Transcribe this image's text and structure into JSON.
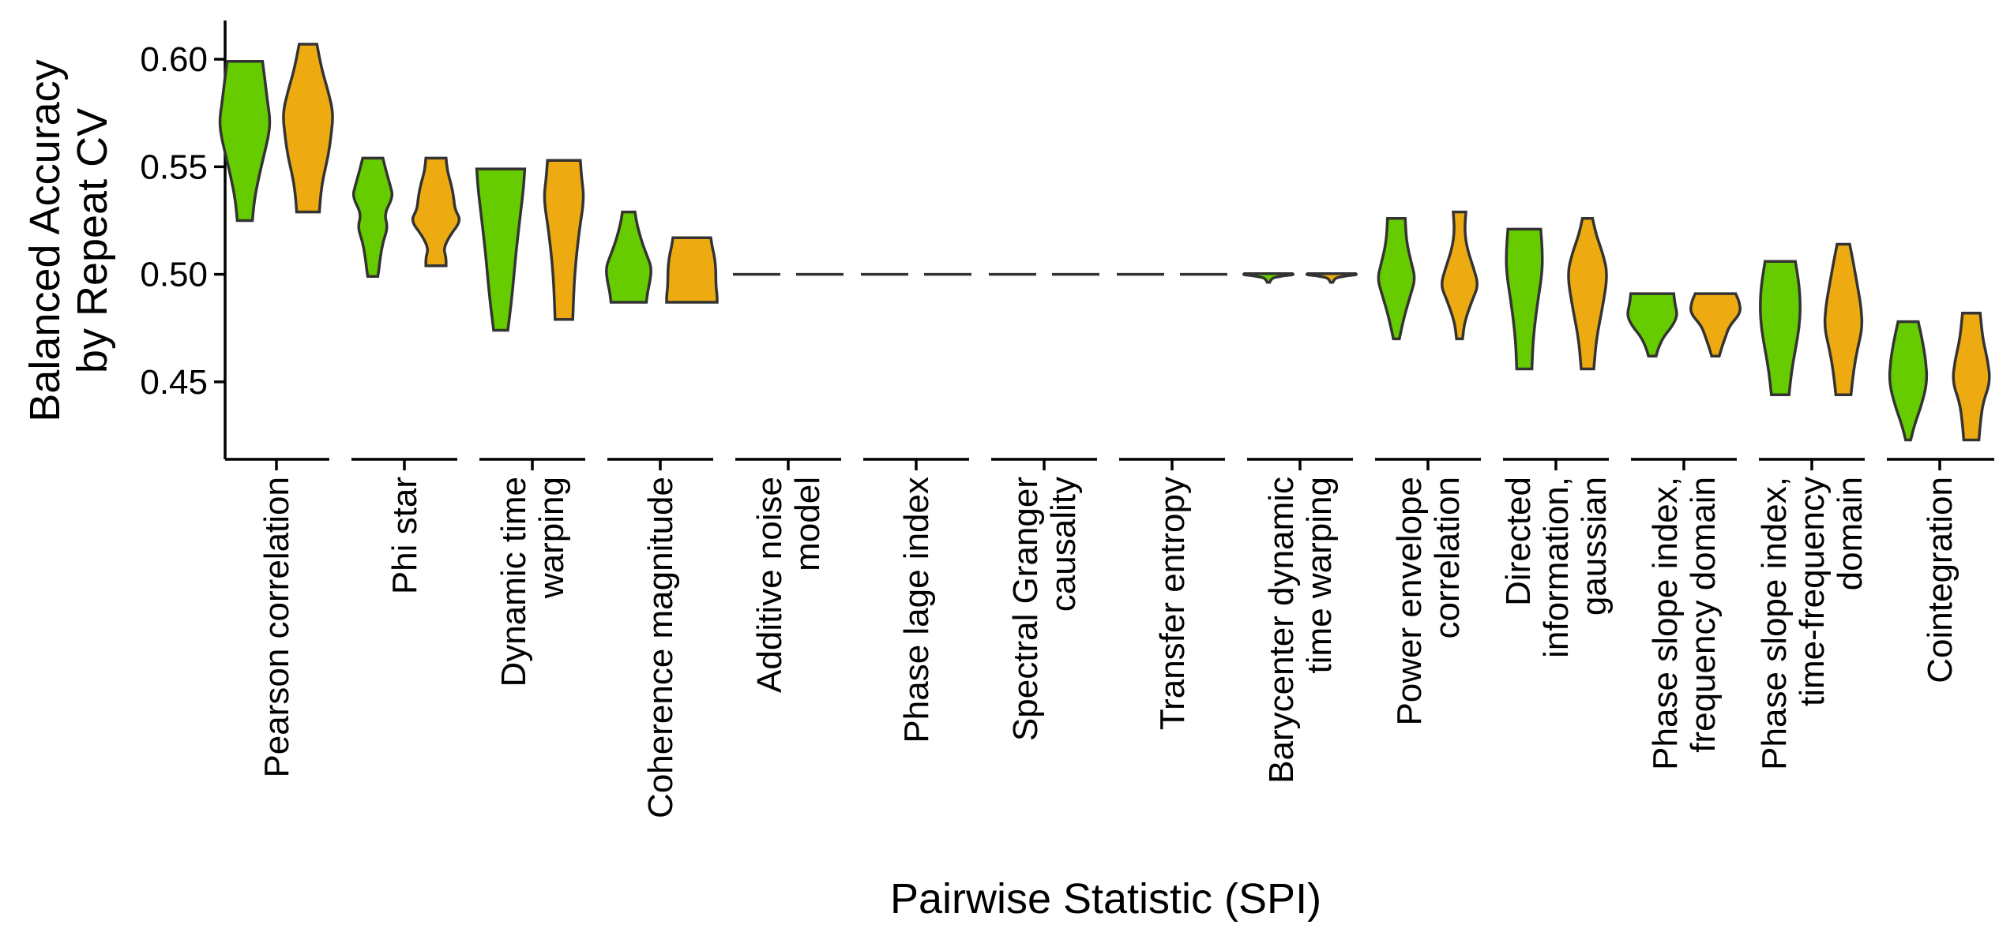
{
  "chart_data": {
    "type": "violin",
    "xlabel": "Pairwise Statistic (SPI)",
    "ylabel": [
      "Balanced Accuracy",
      "by Repeat CV"
    ],
    "ylim": [
      0.414,
      0.618
    ],
    "yticks": [
      0.45,
      0.5,
      0.55,
      0.6
    ],
    "ytick_labels": [
      "0.45",
      "0.50",
      "0.55",
      "0.60"
    ],
    "grid": false,
    "legend": "none",
    "series_colors": [
      "#66cc00",
      "#eeaa11"
    ],
    "categories": [
      {
        "label": [
          "Pearson correlation"
        ],
        "violins": [
          {
            "min": 0.525,
            "max": 0.599,
            "profile": [
              [
                0.525,
                0.3
              ],
              [
                0.535,
                0.38
              ],
              [
                0.545,
                0.55
              ],
              [
                0.555,
                0.75
              ],
              [
                0.565,
                0.95
              ],
              [
                0.572,
                1.0
              ],
              [
                0.58,
                0.9
              ],
              [
                0.59,
                0.8
              ],
              [
                0.599,
                0.7
              ]
            ]
          },
          {
            "min": 0.529,
            "max": 0.607,
            "profile": [
              [
                0.529,
                0.45
              ],
              [
                0.537,
                0.5
              ],
              [
                0.545,
                0.6
              ],
              [
                0.555,
                0.8
              ],
              [
                0.565,
                0.92
              ],
              [
                0.575,
                1.0
              ],
              [
                0.585,
                0.8
              ],
              [
                0.595,
                0.55
              ],
              [
                0.607,
                0.35
              ]
            ]
          }
        ]
      },
      {
        "label": [
          "Phi star"
        ],
        "violins": [
          {
            "min": 0.499,
            "max": 0.554,
            "profile": [
              [
                0.499,
                0.2
              ],
              [
                0.503,
                0.25
              ],
              [
                0.508,
                0.3
              ],
              [
                0.515,
                0.4
              ],
              [
                0.522,
                0.6
              ],
              [
                0.528,
                0.45
              ],
              [
                0.536,
                0.8
              ],
              [
                0.541,
                0.7
              ],
              [
                0.547,
                0.55
              ],
              [
                0.554,
                0.4
              ]
            ]
          },
          {
            "min": 0.504,
            "max": 0.554,
            "profile": [
              [
                0.504,
                0.4
              ],
              [
                0.508,
                0.4
              ],
              [
                0.512,
                0.3
              ],
              [
                0.518,
                0.55
              ],
              [
                0.525,
                1.0
              ],
              [
                0.53,
                0.75
              ],
              [
                0.536,
                0.7
              ],
              [
                0.542,
                0.6
              ],
              [
                0.548,
                0.45
              ],
              [
                0.554,
                0.4
              ]
            ]
          }
        ]
      },
      {
        "label": [
          "Dynamic time",
          "warping"
        ],
        "violins": [
          {
            "min": 0.474,
            "max": 0.549,
            "profile": [
              [
                0.474,
                0.28
              ],
              [
                0.49,
                0.45
              ],
              [
                0.51,
                0.6
              ],
              [
                0.53,
                0.8
              ],
              [
                0.54,
                0.9
              ],
              [
                0.549,
                0.95
              ]
            ]
          },
          {
            "min": 0.479,
            "max": 0.553,
            "profile": [
              [
                0.479,
                0.35
              ],
              [
                0.5,
                0.42
              ],
              [
                0.52,
                0.6
              ],
              [
                0.535,
                0.8
              ],
              [
                0.545,
                0.7
              ],
              [
                0.553,
                0.65
              ]
            ]
          }
        ]
      },
      {
        "label": [
          "Coherence magnitude"
        ],
        "violins": [
          {
            "min": 0.487,
            "max": 0.529,
            "profile": [
              [
                0.487,
                0.7
              ],
              [
                0.492,
                0.75
              ],
              [
                0.497,
                0.85
              ],
              [
                0.503,
                0.9
              ],
              [
                0.508,
                0.75
              ],
              [
                0.514,
                0.55
              ],
              [
                0.52,
                0.4
              ],
              [
                0.525,
                0.3
              ],
              [
                0.529,
                0.25
              ]
            ]
          },
          {
            "min": 0.487,
            "max": 0.517,
            "profile": [
              [
                0.487,
                1.0
              ],
              [
                0.49,
                1.0
              ],
              [
                0.495,
                0.95
              ],
              [
                0.502,
                0.95
              ],
              [
                0.508,
                0.9
              ],
              [
                0.513,
                0.8
              ],
              [
                0.517,
                0.75
              ]
            ]
          }
        ]
      },
      {
        "label": [
          "Additive noise",
          "model"
        ],
        "violins": [
          {
            "min": 0.4997,
            "max": 0.5003,
            "profile": [
              [
                0.4997,
                0.9
              ],
              [
                0.5003,
                0.9
              ]
            ]
          },
          {
            "min": 0.4997,
            "max": 0.5003,
            "profile": [
              [
                0.4997,
                0.9
              ],
              [
                0.5003,
                0.9
              ]
            ]
          }
        ]
      },
      {
        "label": [
          "Phase lage index"
        ],
        "violins": [
          {
            "min": 0.4997,
            "max": 0.5003,
            "profile": [
              [
                0.4997,
                0.9
              ],
              [
                0.5003,
                0.9
              ]
            ]
          },
          {
            "min": 0.4997,
            "max": 0.5003,
            "profile": [
              [
                0.4997,
                0.9
              ],
              [
                0.5003,
                0.9
              ]
            ]
          }
        ]
      },
      {
        "label": [
          "Spectral Granger",
          "causality"
        ],
        "violins": [
          {
            "min": 0.4997,
            "max": 0.5003,
            "profile": [
              [
                0.4997,
                0.9
              ],
              [
                0.5003,
                0.9
              ]
            ]
          },
          {
            "min": 0.4997,
            "max": 0.5003,
            "profile": [
              [
                0.4997,
                0.9
              ],
              [
                0.5003,
                0.9
              ]
            ]
          }
        ]
      },
      {
        "label": [
          "Transfer entropy"
        ],
        "violins": [
          {
            "min": 0.4997,
            "max": 0.5003,
            "profile": [
              [
                0.4997,
                0.9
              ],
              [
                0.5003,
                0.9
              ]
            ]
          },
          {
            "min": 0.4997,
            "max": 0.5003,
            "profile": [
              [
                0.4997,
                0.9
              ],
              [
                0.5003,
                0.9
              ]
            ]
          }
        ]
      },
      {
        "label": [
          "Barycenter dynamic",
          "time warping"
        ],
        "violins": [
          {
            "min": 0.4963,
            "max": 0.5003,
            "profile": [
              [
                0.4963,
                0.05
              ],
              [
                0.4975,
                0.1
              ],
              [
                0.4985,
                0.2
              ],
              [
                0.4993,
                0.6
              ],
              [
                0.4998,
                1.0
              ],
              [
                0.5003,
                0.95
              ]
            ]
          },
          {
            "min": 0.4963,
            "max": 0.5003,
            "profile": [
              [
                0.4963,
                0.05
              ],
              [
                0.4975,
                0.1
              ],
              [
                0.4985,
                0.2
              ],
              [
                0.4993,
                0.6
              ],
              [
                0.4998,
                1.0
              ],
              [
                0.5003,
                0.95
              ]
            ]
          }
        ]
      },
      {
        "label": [
          "Power envelope",
          "correlation"
        ],
        "violins": [
          {
            "min": 0.47,
            "max": 0.526,
            "profile": [
              [
                0.47,
                0.12
              ],
              [
                0.48,
                0.3
              ],
              [
                0.49,
                0.55
              ],
              [
                0.498,
                0.75
              ],
              [
                0.505,
                0.6
              ],
              [
                0.515,
                0.4
              ],
              [
                0.526,
                0.35
              ]
            ]
          },
          {
            "min": 0.47,
            "max": 0.529,
            "profile": [
              [
                0.47,
                0.12
              ],
              [
                0.478,
                0.2
              ],
              [
                0.488,
                0.5
              ],
              [
                0.495,
                0.75
              ],
              [
                0.503,
                0.55
              ],
              [
                0.512,
                0.3
              ],
              [
                0.52,
                0.2
              ],
              [
                0.529,
                0.25
              ]
            ]
          }
        ]
      },
      {
        "label": [
          "Directed",
          "information,",
          "gaussian"
        ],
        "violins": [
          {
            "min": 0.456,
            "max": 0.521,
            "profile": [
              [
                0.456,
                0.3
              ],
              [
                0.47,
                0.35
              ],
              [
                0.485,
                0.5
              ],
              [
                0.5,
                0.7
              ],
              [
                0.51,
                0.72
              ],
              [
                0.521,
                0.65
              ]
            ]
          },
          {
            "min": 0.456,
            "max": 0.526,
            "profile": [
              [
                0.456,
                0.25
              ],
              [
                0.47,
                0.35
              ],
              [
                0.485,
                0.6
              ],
              [
                0.5,
                0.8
              ],
              [
                0.51,
                0.6
              ],
              [
                0.518,
                0.35
              ],
              [
                0.526,
                0.2
              ]
            ]
          }
        ]
      },
      {
        "label": [
          "Phase slope index,",
          "frequency domain"
        ],
        "violins": [
          {
            "min": 0.462,
            "max": 0.491,
            "profile": [
              [
                0.462,
                0.15
              ],
              [
                0.466,
                0.25
              ],
              [
                0.471,
                0.45
              ],
              [
                0.476,
                0.8
              ],
              [
                0.481,
                1.0
              ],
              [
                0.486,
                0.9
              ],
              [
                0.491,
                0.85
              ]
            ]
          },
          {
            "min": 0.462,
            "max": 0.491,
            "profile": [
              [
                0.462,
                0.15
              ],
              [
                0.466,
                0.25
              ],
              [
                0.471,
                0.4
              ],
              [
                0.476,
                0.55
              ],
              [
                0.482,
                1.0
              ],
              [
                0.487,
                0.95
              ],
              [
                0.491,
                0.8
              ]
            ]
          }
        ]
      },
      {
        "label": [
          "Phase slope index,",
          "time-frequency",
          "domain"
        ],
        "violins": [
          {
            "min": 0.444,
            "max": 0.506,
            "profile": [
              [
                0.444,
                0.35
              ],
              [
                0.455,
                0.45
              ],
              [
                0.465,
                0.6
              ],
              [
                0.475,
                0.75
              ],
              [
                0.485,
                0.8
              ],
              [
                0.495,
                0.75
              ],
              [
                0.506,
                0.6
              ]
            ]
          },
          {
            "min": 0.444,
            "max": 0.514,
            "profile": [
              [
                0.444,
                0.3
              ],
              [
                0.455,
                0.4
              ],
              [
                0.465,
                0.55
              ],
              [
                0.475,
                0.75
              ],
              [
                0.485,
                0.7
              ],
              [
                0.495,
                0.55
              ],
              [
                0.505,
                0.4
              ],
              [
                0.514,
                0.25
              ]
            ]
          }
        ]
      },
      {
        "label": [
          "Cointegration"
        ],
        "violins": [
          {
            "min": 0.423,
            "max": 0.478,
            "profile": [
              [
                0.423,
                0.1
              ],
              [
                0.43,
                0.25
              ],
              [
                0.44,
                0.55
              ],
              [
                0.45,
                0.75
              ],
              [
                0.46,
                0.7
              ],
              [
                0.47,
                0.55
              ],
              [
                0.478,
                0.4
              ]
            ]
          },
          {
            "min": 0.423,
            "max": 0.482,
            "profile": [
              [
                0.423,
                0.3
              ],
              [
                0.43,
                0.35
              ],
              [
                0.44,
                0.45
              ],
              [
                0.45,
                0.75
              ],
              [
                0.46,
                0.65
              ],
              [
                0.47,
                0.45
              ],
              [
                0.482,
                0.35
              ]
            ]
          }
        ]
      }
    ]
  }
}
